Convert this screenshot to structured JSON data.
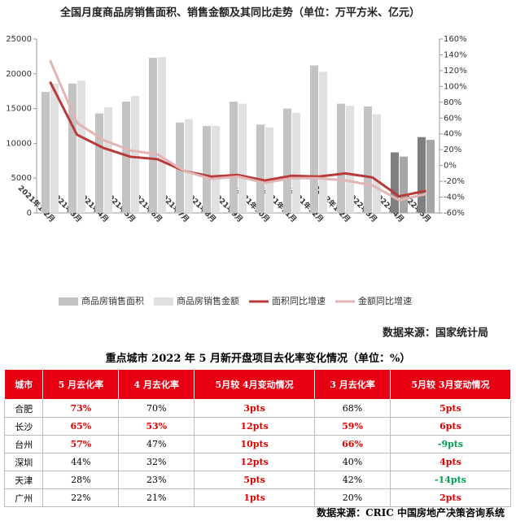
{
  "chart_data": {
    "type": "bar-line",
    "title": "全国月度商品房销售面积、销售金额及其同比走势（单位：万平方米、亿元）",
    "categories": [
      "2021年1-2月",
      "2021年3月",
      "2021年4月",
      "2021年5月",
      "2021年6月",
      "2021年7月",
      "2021年8月",
      "2021年9月",
      "2021年10月",
      "2021年11月",
      "2021年12月",
      "2022年1-2月",
      "2022年3月",
      "2022年4月",
      "2022年5月"
    ],
    "series": [
      {
        "name": "商品房销售面积",
        "type": "bar",
        "color": "#c3c3c3",
        "colors": [
          "#c3c3c3",
          "#c3c3c3",
          "#c3c3c3",
          "#c3c3c3",
          "#c3c3c3",
          "#c3c3c3",
          "#c3c3c3",
          "#c3c3c3",
          "#c3c3c3",
          "#c3c3c3",
          "#c3c3c3",
          "#c3c3c3",
          "#c3c3c3",
          "#7f7f7f",
          "#7f7f7f"
        ],
        "values": [
          17400,
          18600,
          14300,
          16000,
          22300,
          13000,
          12500,
          16000,
          12700,
          15000,
          21200,
          15700,
          15300,
          8700,
          10900
        ]
      },
      {
        "name": "商品房销售金额",
        "type": "bar",
        "color": "#e0e0e0",
        "colors": [
          "#e0e0e0",
          "#e0e0e0",
          "#e0e0e0",
          "#e0e0e0",
          "#e0e0e0",
          "#e0e0e0",
          "#e0e0e0",
          "#e0e0e0",
          "#e0e0e0",
          "#e0e0e0",
          "#e0e0e0",
          "#e0e0e0",
          "#e0e0e0",
          "#a6a6a6",
          "#a6a6a6"
        ],
        "values": [
          18600,
          19000,
          15200,
          16800,
          22400,
          13500,
          12500,
          15700,
          12300,
          14400,
          20300,
          15400,
          14200,
          8100,
          10500
        ]
      },
      {
        "name": "面积同比增速",
        "type": "line",
        "axis": "y2",
        "color": "#b83a3a",
        "values": [
          106,
          39,
          22,
          11,
          8,
          -7,
          -14,
          -12,
          -19,
          -13,
          -14,
          -10,
          -15,
          -39,
          -32
        ]
      },
      {
        "name": "金额同比增速",
        "type": "line",
        "axis": "y2",
        "color": "#e2b4b4",
        "values": [
          133,
          54,
          32,
          19,
          14,
          -7,
          -17,
          -14,
          -22,
          -16,
          -16,
          -19,
          -25,
          -44,
          -36
        ]
      }
    ],
    "ylim": [
      0,
      25000
    ],
    "yticks": [
      0,
      5000,
      10000,
      15000,
      20000,
      25000
    ],
    "y2lim": [
      -60,
      160
    ],
    "y2ticks": [
      {
        "value": -60,
        "label": "-60%"
      },
      {
        "value": -40,
        "label": "-40%"
      },
      {
        "value": -20,
        "label": "-20%"
      },
      {
        "value": 0,
        "label": "0%"
      },
      {
        "value": 20,
        "label": "20%"
      },
      {
        "value": 40,
        "label": "40%"
      },
      {
        "value": 60,
        "label": "60%"
      },
      {
        "value": 80,
        "label": "80%"
      },
      {
        "value": 100,
        "label": "100%"
      },
      {
        "value": 120,
        "label": "120%"
      },
      {
        "value": 140,
        "label": "140%"
      },
      {
        "value": 160,
        "label": "160%"
      }
    ],
    "grid": false,
    "legend": "bottom",
    "source": "数据来源：国家统计局"
  },
  "table": {
    "title": "重点城市 2022 年 5 月新开盘项目去化率变化情况（单位：%）",
    "header": [
      "城市",
      "5 月去化率",
      "4 月去化率",
      "5月较 4月变动情况",
      "3 月去化率",
      "5月较 3月变动情况"
    ],
    "header_color": "#e60012",
    "rows": [
      [
        "合肥",
        "73%",
        "70%",
        "3pts",
        "68%",
        "5pts"
      ],
      [
        "长沙",
        "65%",
        "53%",
        "12pts",
        "59%",
        "6pts"
      ],
      [
        "台州",
        "57%",
        "47%",
        "10pts",
        "66%",
        "-9pts"
      ],
      [
        "深圳",
        "44%",
        "32%",
        "12pts",
        "40%",
        "4pts"
      ],
      [
        "天津",
        "28%",
        "23%",
        "5pts",
        "42%",
        "-14pts"
      ],
      [
        "广州",
        "22%",
        "21%",
        "1pts",
        "20%",
        "2pts"
      ]
    ],
    "cell_colors": [
      [
        null,
        "#e00000",
        null,
        "#e00000",
        null,
        "#e00000"
      ],
      [
        null,
        "#e00000",
        "#e00000",
        "#e00000",
        "#e00000",
        "#e00000"
      ],
      [
        null,
        "#e00000",
        null,
        "#e00000",
        "#e00000",
        "#00a050"
      ],
      [
        null,
        null,
        null,
        "#e00000",
        null,
        "#e00000"
      ],
      [
        null,
        null,
        null,
        "#e00000",
        null,
        "#00a050"
      ],
      [
        null,
        null,
        null,
        "#e00000",
        null,
        "#e00000"
      ]
    ],
    "source": "数据来源：CRIC 中国房地产决策咨询系统"
  }
}
